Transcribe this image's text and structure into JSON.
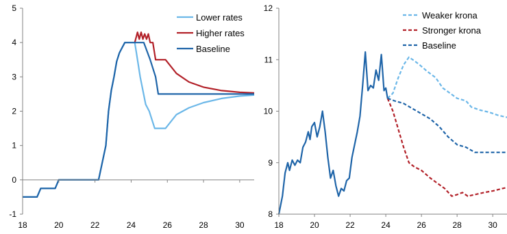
{
  "chart_data": [
    {
      "type": "line",
      "title": "",
      "xlabel": "",
      "ylabel": "",
      "xlim": [
        18,
        30.8
      ],
      "ylim": [
        -1,
        5
      ],
      "xticks": [
        18,
        20,
        22,
        24,
        26,
        28,
        30
      ],
      "yticks": [
        -1,
        0,
        1,
        2,
        3,
        4,
        5
      ],
      "grid": false,
      "legend_position": "top-right",
      "series": [
        {
          "name": "Lower rates",
          "color": "#6BB7E8",
          "style": "solid",
          "points": [
            [
              18,
              -0.5
            ],
            [
              18.8,
              -0.5
            ],
            [
              19.0,
              -0.25
            ],
            [
              19.8,
              -0.25
            ],
            [
              20.0,
              0
            ],
            [
              22.2,
              0
            ],
            [
              22.4,
              0.5
            ],
            [
              22.6,
              1.0
            ],
            [
              22.75,
              2.0
            ],
            [
              22.9,
              2.6
            ],
            [
              23.05,
              3.0
            ],
            [
              23.2,
              3.45
            ],
            [
              23.35,
              3.7
            ],
            [
              23.5,
              3.85
            ],
            [
              23.65,
              4.0
            ],
            [
              24.2,
              4.0
            ],
            [
              24.35,
              3.5
            ],
            [
              24.5,
              3.0
            ],
            [
              24.65,
              2.6
            ],
            [
              24.8,
              2.2
            ],
            [
              25.0,
              2.0
            ],
            [
              25.3,
              1.5
            ],
            [
              25.9,
              1.5
            ],
            [
              26.5,
              1.9
            ],
            [
              27.2,
              2.1
            ],
            [
              28.0,
              2.25
            ],
            [
              29.0,
              2.37
            ],
            [
              30.0,
              2.44
            ],
            [
              30.8,
              2.47
            ]
          ]
        },
        {
          "name": "Higher rates",
          "color": "#B22028",
          "style": "solid",
          "points": [
            [
              24.2,
              4.0
            ],
            [
              24.35,
              4.3
            ],
            [
              24.45,
              4.1
            ],
            [
              24.55,
              4.3
            ],
            [
              24.65,
              4.1
            ],
            [
              24.75,
              4.25
            ],
            [
              24.85,
              4.1
            ],
            [
              24.95,
              4.25
            ],
            [
              25.05,
              4.0
            ],
            [
              25.2,
              4.0
            ],
            [
              25.35,
              3.5
            ],
            [
              25.9,
              3.5
            ],
            [
              26.5,
              3.1
            ],
            [
              27.2,
              2.85
            ],
            [
              28.0,
              2.7
            ],
            [
              29.0,
              2.6
            ],
            [
              30.0,
              2.55
            ],
            [
              30.8,
              2.53
            ]
          ]
        },
        {
          "name": "Baseline",
          "color": "#1E64A8",
          "style": "solid",
          "points": [
            [
              18,
              -0.5
            ],
            [
              18.8,
              -0.5
            ],
            [
              19.0,
              -0.25
            ],
            [
              19.8,
              -0.25
            ],
            [
              20.0,
              0
            ],
            [
              22.2,
              0
            ],
            [
              22.4,
              0.5
            ],
            [
              22.6,
              1.0
            ],
            [
              22.75,
              2.0
            ],
            [
              22.9,
              2.6
            ],
            [
              23.05,
              3.0
            ],
            [
              23.2,
              3.45
            ],
            [
              23.35,
              3.7
            ],
            [
              23.5,
              3.85
            ],
            [
              23.65,
              4.0
            ],
            [
              24.35,
              4.0
            ],
            [
              24.7,
              4.0
            ],
            [
              25.05,
              3.5
            ],
            [
              25.35,
              3.0
            ],
            [
              25.5,
              2.5
            ],
            [
              30.8,
              2.5
            ]
          ]
        }
      ]
    },
    {
      "type": "line",
      "title": "",
      "xlabel": "",
      "ylabel": "",
      "xlim": [
        18,
        30.8
      ],
      "ylim": [
        8,
        12
      ],
      "xticks": [
        18,
        20,
        22,
        24,
        26,
        28,
        30
      ],
      "yticks": [
        8,
        9,
        10,
        11,
        12
      ],
      "grid": false,
      "legend_position": "top-right",
      "series": [
        {
          "name": "Weaker krona",
          "color": "#6BB7E8",
          "style": "dashed",
          "points": [
            [
              24.1,
              10.25
            ],
            [
              24.4,
              10.35
            ],
            [
              24.7,
              10.65
            ],
            [
              25.0,
              10.9
            ],
            [
              25.3,
              11.05
            ],
            [
              25.6,
              10.98
            ],
            [
              25.9,
              10.9
            ],
            [
              26.3,
              10.78
            ],
            [
              26.8,
              10.65
            ],
            [
              27.2,
              10.45
            ],
            [
              27.6,
              10.35
            ],
            [
              28.0,
              10.25
            ],
            [
              28.5,
              10.2
            ],
            [
              28.8,
              10.08
            ],
            [
              29.3,
              10.02
            ],
            [
              29.8,
              9.98
            ],
            [
              30.3,
              9.92
            ],
            [
              30.8,
              9.88
            ]
          ]
        },
        {
          "name": "Stronger krona",
          "color": "#B22028",
          "style": "dashed",
          "points": [
            [
              24.1,
              10.25
            ],
            [
              24.4,
              10.0
            ],
            [
              24.7,
              9.65
            ],
            [
              25.0,
              9.3
            ],
            [
              25.3,
              9.0
            ],
            [
              25.6,
              8.92
            ],
            [
              26.0,
              8.85
            ],
            [
              26.5,
              8.7
            ],
            [
              26.9,
              8.6
            ],
            [
              27.3,
              8.5
            ],
            [
              27.7,
              8.35
            ],
            [
              28.0,
              8.38
            ],
            [
              28.3,
              8.42
            ],
            [
              28.6,
              8.35
            ],
            [
              29.0,
              8.38
            ],
            [
              29.5,
              8.42
            ],
            [
              30.0,
              8.45
            ],
            [
              30.8,
              8.52
            ]
          ]
        },
        {
          "name": "Baseline",
          "color": "#1E64A8",
          "style": "dashed",
          "points": [
            [
              24.1,
              10.25
            ],
            [
              24.5,
              10.2
            ],
            [
              25.0,
              10.15
            ],
            [
              25.5,
              10.05
            ],
            [
              26.0,
              9.95
            ],
            [
              26.5,
              9.85
            ],
            [
              27.0,
              9.7
            ],
            [
              27.5,
              9.5
            ],
            [
              28.0,
              9.35
            ],
            [
              28.5,
              9.3
            ],
            [
              29.0,
              9.2
            ],
            [
              29.5,
              9.2
            ],
            [
              30.0,
              9.2
            ],
            [
              30.8,
              9.2
            ]
          ]
        },
        {
          "name": "",
          "color": "#1E64A8",
          "style": "solid",
          "points": [
            [
              18.0,
              8.0
            ],
            [
              18.2,
              8.35
            ],
            [
              18.35,
              8.8
            ],
            [
              18.5,
              9.0
            ],
            [
              18.6,
              8.85
            ],
            [
              18.75,
              9.05
            ],
            [
              18.9,
              8.95
            ],
            [
              19.05,
              9.05
            ],
            [
              19.2,
              9.0
            ],
            [
              19.35,
              9.3
            ],
            [
              19.5,
              9.4
            ],
            [
              19.65,
              9.6
            ],
            [
              19.75,
              9.45
            ],
            [
              19.85,
              9.7
            ],
            [
              20.0,
              9.78
            ],
            [
              20.15,
              9.5
            ],
            [
              20.3,
              9.7
            ],
            [
              20.45,
              10.0
            ],
            [
              20.6,
              9.6
            ],
            [
              20.75,
              9.1
            ],
            [
              20.9,
              8.7
            ],
            [
              21.05,
              8.85
            ],
            [
              21.2,
              8.55
            ],
            [
              21.35,
              8.35
            ],
            [
              21.5,
              8.5
            ],
            [
              21.65,
              8.45
            ],
            [
              21.8,
              8.65
            ],
            [
              21.95,
              8.7
            ],
            [
              22.1,
              9.1
            ],
            [
              22.25,
              9.35
            ],
            [
              22.4,
              9.6
            ],
            [
              22.55,
              9.9
            ],
            [
              22.7,
              10.5
            ],
            [
              22.85,
              11.15
            ],
            [
              23.0,
              10.4
            ],
            [
              23.15,
              10.5
            ],
            [
              23.3,
              10.45
            ],
            [
              23.45,
              10.8
            ],
            [
              23.6,
              10.6
            ],
            [
              23.75,
              11.1
            ],
            [
              23.9,
              10.4
            ],
            [
              24.0,
              10.45
            ],
            [
              24.1,
              10.25
            ]
          ]
        }
      ]
    }
  ]
}
